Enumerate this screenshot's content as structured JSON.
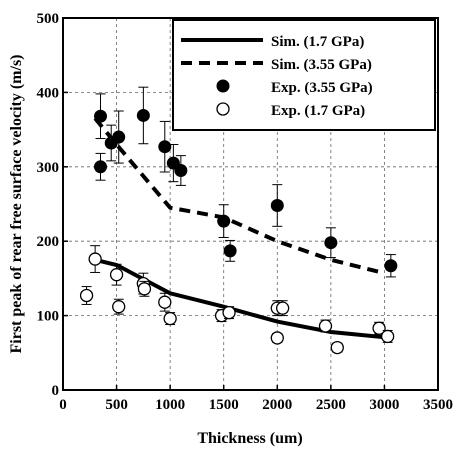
{
  "chart_data": {
    "type": "scatter",
    "xlabel": "Thickness (um)",
    "ylabel": "First peak of rear free surface velocity (m/s)",
    "xlim": [
      0,
      3500
    ],
    "ylim": [
      0,
      500
    ],
    "x_ticks": [
      0,
      500,
      1000,
      1500,
      2000,
      2500,
      3000,
      3500
    ],
    "y_ticks": [
      0,
      100,
      200,
      300,
      400,
      500
    ],
    "grid": true,
    "legend_position": "top-right",
    "series": [
      {
        "name": "Sim. (1.7 GPa)",
        "kind": "line",
        "style": "solid",
        "x": [
          300,
          500,
          1000,
          1500,
          2000,
          2500,
          3000
        ],
        "y": [
          175,
          168,
          130,
          112,
          92,
          78,
          71
        ]
      },
      {
        "name": "Sim. (3.55 GPa)",
        "kind": "line",
        "style": "dashed",
        "x": [
          300,
          500,
          1000,
          1500,
          2000,
          2500,
          3000
        ],
        "y": [
          365,
          330,
          245,
          232,
          200,
          175,
          157
        ]
      },
      {
        "name": "Exp. (3.55 GPa)",
        "kind": "points",
        "marker": "filled-circle",
        "points": [
          {
            "x": 350,
            "y": 368,
            "err": 30
          },
          {
            "x": 350,
            "y": 300,
            "err": 18
          },
          {
            "x": 450,
            "y": 332,
            "err": 24
          },
          {
            "x": 520,
            "y": 340,
            "err": 35
          },
          {
            "x": 750,
            "y": 369,
            "err": 38
          },
          {
            "x": 950,
            "y": 327,
            "err": 34
          },
          {
            "x": 1030,
            "y": 305,
            "err": 25
          },
          {
            "x": 1100,
            "y": 295,
            "err": 20
          },
          {
            "x": 1500,
            "y": 227,
            "err": 22
          },
          {
            "x": 1560,
            "y": 187,
            "err": 14
          },
          {
            "x": 2000,
            "y": 248,
            "err": 28
          },
          {
            "x": 2500,
            "y": 198,
            "err": 20
          },
          {
            "x": 3060,
            "y": 167,
            "err": 15
          }
        ]
      },
      {
        "name": "Exp. (1.7 GPa)",
        "kind": "points",
        "marker": "open-circle",
        "points": [
          {
            "x": 220,
            "y": 127,
            "err": 12
          },
          {
            "x": 300,
            "y": 176,
            "err": 18
          },
          {
            "x": 500,
            "y": 155,
            "err": 14
          },
          {
            "x": 520,
            "y": 112,
            "err": 10
          },
          {
            "x": 750,
            "y": 143,
            "err": 14
          },
          {
            "x": 760,
            "y": 136,
            "err": 10
          },
          {
            "x": 950,
            "y": 118,
            "err": 12
          },
          {
            "x": 1000,
            "y": 96,
            "err": 8
          },
          {
            "x": 1480,
            "y": 100,
            "err": 8
          },
          {
            "x": 1550,
            "y": 104,
            "err": 8
          },
          {
            "x": 2000,
            "y": 70,
            "err": 6
          },
          {
            "x": 2000,
            "y": 110,
            "err": 10
          },
          {
            "x": 2050,
            "y": 110,
            "err": 10
          },
          {
            "x": 2450,
            "y": 86,
            "err": 8
          },
          {
            "x": 2560,
            "y": 57,
            "err": 6
          },
          {
            "x": 2950,
            "y": 83,
            "err": 8
          },
          {
            "x": 3030,
            "y": 72,
            "err": 8
          }
        ]
      }
    ]
  }
}
